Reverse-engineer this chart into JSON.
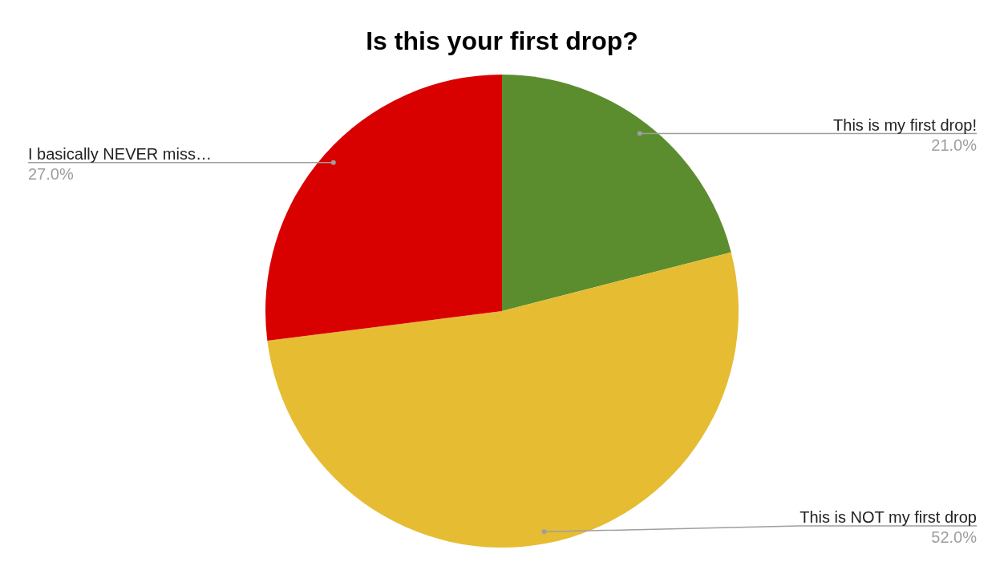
{
  "chart_data": {
    "type": "pie",
    "title": "Is this your first drop?",
    "categories": [
      "This is my first drop!",
      "This is NOT my first drop",
      "I basically NEVER miss…"
    ],
    "values": [
      21,
      52,
      27
    ],
    "colors": [
      "#5b8d2f",
      "#e6bc33",
      "#d90000"
    ],
    "value_labels": [
      "21.0%",
      "52.0%",
      "27.0%"
    ]
  }
}
